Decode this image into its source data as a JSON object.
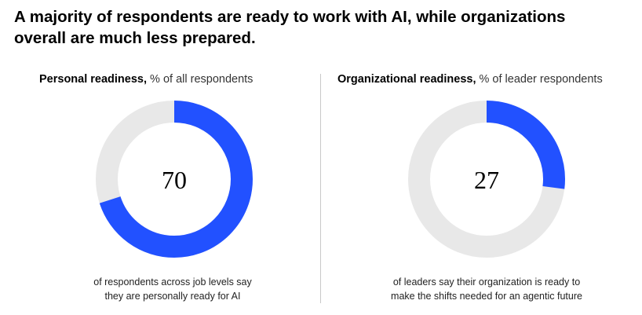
{
  "title": {
    "line1": "A majority of respondents are ready to work with AI, while organizations",
    "line2": "overall are much less prepared."
  },
  "colors": {
    "accent": "#2251ff",
    "track": "#e8e8e8",
    "divider": "#c8c8c8"
  },
  "chart_data": [
    {
      "type": "pie",
      "subtype": "donut",
      "title_bold": "Personal readiness,",
      "title_rest": " % of all respondents",
      "value": 70,
      "max": 100,
      "center_label": "70",
      "caption_lines": [
        "of respondents across job levels say",
        "they are personally ready for AI"
      ]
    },
    {
      "type": "pie",
      "subtype": "donut",
      "title_bold": "Organizational readiness,",
      "title_rest": " % of leader respondents",
      "value": 27,
      "max": 100,
      "center_label": "27",
      "caption_lines": [
        "of leaders say their organization is ready to",
        "make the shifts needed for an agentic future"
      ]
    }
  ]
}
